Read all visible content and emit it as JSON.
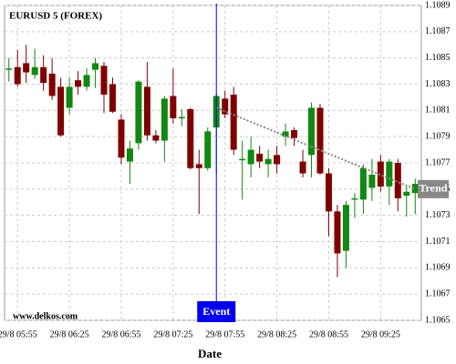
{
  "chart_data": {
    "type": "candlestick",
    "title": "EURUSD 5 (FOREX)",
    "watermark": "www.delkos.com",
    "x_label": "Date",
    "categories": [
      null,
      "29/8 05:55",
      null,
      null,
      null,
      null,
      null,
      "29/8 06:25",
      null,
      null,
      null,
      null,
      null,
      "29/8 06:55",
      null,
      null,
      null,
      null,
      null,
      "29/8 07:25",
      null,
      null,
      null,
      null,
      null,
      "29/8 07:55",
      null,
      null,
      null,
      null,
      null,
      "29/8 08:25",
      null,
      null,
      null,
      null,
      null,
      "29/8 08:55",
      null,
      null,
      null,
      null,
      null,
      "29/8 09:25",
      null,
      null,
      null,
      null
    ],
    "open": [
      1.10842,
      1.10843,
      1.10846,
      1.10837,
      1.10843,
      1.10838,
      1.10828,
      1.10812,
      1.10833,
      1.10828,
      1.10841,
      1.10844,
      1.1083,
      1.10803,
      1.10771,
      1.10785,
      1.10828,
      1.10791,
      1.10787,
      1.10821,
      1.10805,
      1.10811,
      1.10769,
      1.10766,
      1.10797,
      1.10819,
      1.10822,
      1.10773,
      1.10769,
      1.10777,
      1.10769,
      1.10776,
      1.1079,
      1.10795,
      1.10771,
      1.10776,
      1.10812,
      1.10762,
      1.10733,
      1.10703,
      1.10743,
      1.10742,
      1.10751,
      1.10771,
      1.10752,
      1.1077,
      1.10745,
      1.10747
    ],
    "high": [
      1.1085,
      1.10856,
      1.1086,
      1.10857,
      1.10852,
      1.1085,
      1.10835,
      1.10835,
      1.1084,
      1.10842,
      1.1085,
      1.10847,
      1.10835,
      1.10807,
      1.10787,
      1.10833,
      1.10847,
      1.10795,
      1.10821,
      1.10842,
      1.10811,
      1.10812,
      1.1078,
      1.10797,
      1.10823,
      1.10825,
      1.10828,
      1.10787,
      1.1079,
      1.10783,
      1.1078,
      1.10783,
      1.108,
      1.10797,
      1.1078,
      1.10816,
      1.10815,
      1.10766,
      1.10738,
      1.10741,
      1.10747,
      1.10769,
      1.10773,
      1.10776,
      1.10773,
      1.10773,
      1.10752,
      1.10758
    ],
    "low": [
      1.10832,
      1.10828,
      1.10831,
      1.10834,
      1.10825,
      1.10818,
      1.1079,
      1.10807,
      1.10822,
      1.10825,
      1.10827,
      1.10808,
      1.10808,
      1.10769,
      1.10754,
      1.1078,
      1.10787,
      1.10785,
      1.10771,
      1.108,
      1.10798,
      1.10765,
      1.10731,
      1.10764,
      1.10762,
      1.10804,
      1.10776,
      1.10742,
      1.10759,
      1.10766,
      1.10759,
      1.10762,
      1.10783,
      1.10783,
      1.10759,
      1.10759,
      1.10761,
      1.10714,
      1.10683,
      1.1069,
      1.10728,
      1.10731,
      1.10741,
      1.10748,
      1.10738,
      1.10733,
      1.10729,
      1.10731
    ],
    "close": [
      1.10842,
      1.1083,
      1.10839,
      1.10843,
      1.10831,
      1.10821,
      1.10791,
      1.10828,
      1.10828,
      1.10837,
      1.10846,
      1.10822,
      1.10809,
      1.10774,
      1.10781,
      1.10832,
      1.10791,
      1.10787,
      1.10819,
      1.10804,
      1.10805,
      1.10766,
      1.10766,
      1.10794,
      1.10821,
      1.10807,
      1.1078,
      1.10773,
      1.1078,
      1.10771,
      1.10773,
      1.10769,
      1.10794,
      1.10789,
      1.10762,
      1.10812,
      1.10762,
      1.10733,
      1.10701,
      1.10738,
      1.10743,
      1.10766,
      1.10761,
      1.10752,
      1.10771,
      1.10743,
      1.10748,
      1.10754
    ],
    "up_color": "#118811",
    "down_color": "#800000",
    "ylim": [
      1.1065,
      1.1089
    ],
    "yticks": [
      1.1065,
      1.1067,
      1.1069,
      1.1071,
      1.1073,
      1.1075,
      1.1077,
      1.1079,
      1.1081,
      1.1083,
      1.1085,
      1.1087,
      1.1089
    ],
    "grid": true,
    "event": {
      "label": "Event",
      "index": 24,
      "color": "#0000ee"
    },
    "trend": {
      "label": "Trend",
      "from_index": 24,
      "to_index": 47,
      "from": 1.10812,
      "to": 1.1075,
      "color": "#888888"
    }
  }
}
